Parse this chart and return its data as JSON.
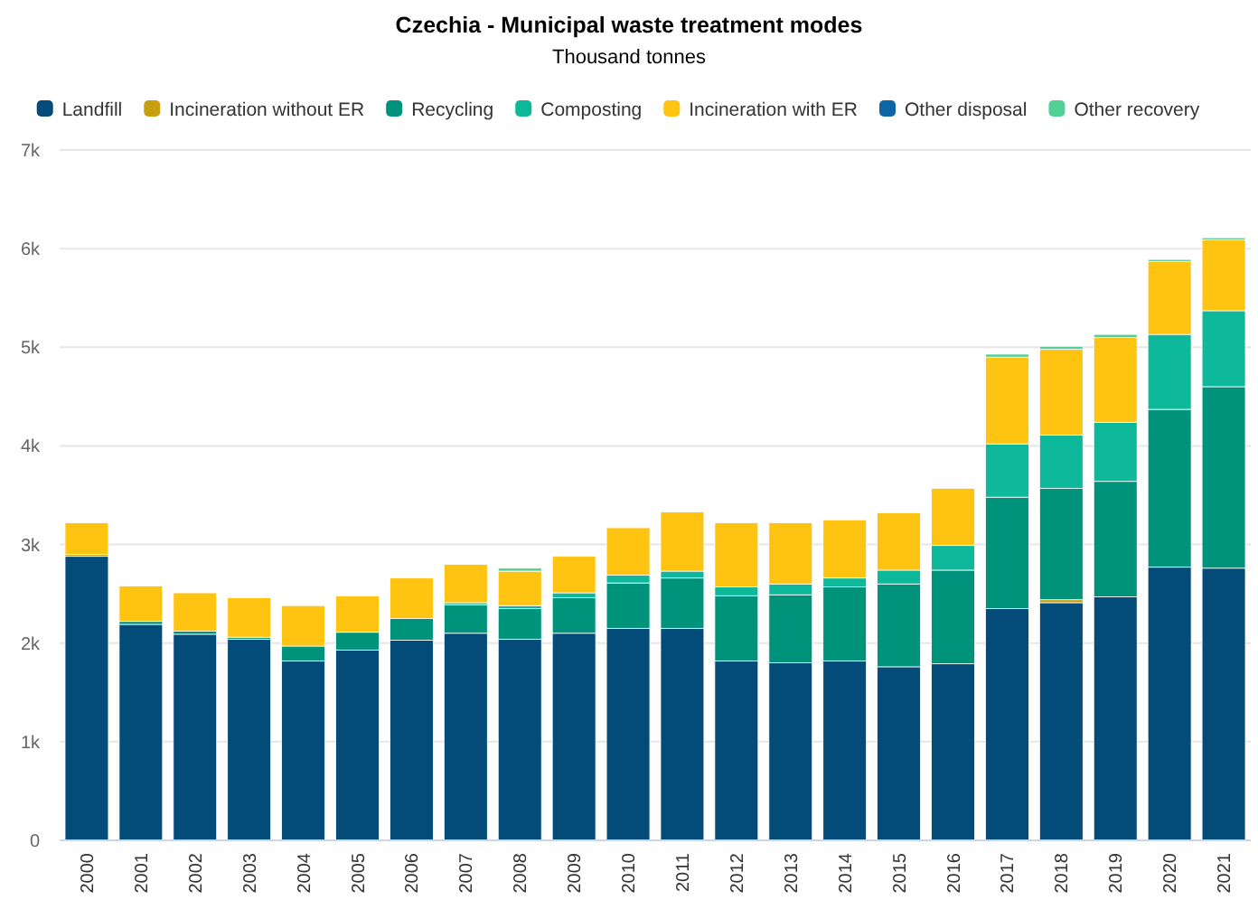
{
  "chart_data": {
    "type": "bar",
    "stacked": true,
    "title": "Czechia - Municipal waste treatment modes",
    "subtitle": "Thousand tonnes",
    "categories": [
      "2000",
      "2001",
      "2002",
      "2003",
      "2004",
      "2005",
      "2006",
      "2007",
      "2008",
      "2009",
      "2010",
      "2011",
      "2012",
      "2013",
      "2014",
      "2015",
      "2016",
      "2017",
      "2018",
      "2019",
      "2020",
      "2021"
    ],
    "series": [
      {
        "name": "Landfill",
        "color": "#034b78",
        "values": [
          2.88,
          2.19,
          2.09,
          2.04,
          1.82,
          1.93,
          2.03,
          2.1,
          2.04,
          2.1,
          2.15,
          2.15,
          1.82,
          1.8,
          1.82,
          1.76,
          1.79,
          2.35,
          2.41,
          2.47,
          2.77,
          2.76
        ]
      },
      {
        "name": "Incineration without ER",
        "color": "#c8a00f",
        "values": [
          0.02,
          null,
          null,
          null,
          null,
          null,
          null,
          null,
          null,
          null,
          null,
          null,
          null,
          null,
          null,
          null,
          null,
          null,
          0.03,
          null,
          null,
          null
        ]
      },
      {
        "name": "Recycling",
        "color": "#00937b",
        "values": [
          null,
          0.03,
          0.03,
          0.02,
          0.15,
          0.18,
          0.22,
          0.29,
          0.31,
          0.36,
          0.46,
          0.51,
          0.66,
          0.69,
          0.75,
          0.84,
          0.95,
          1.13,
          1.13,
          1.17,
          1.6,
          1.84
        ]
      },
      {
        "name": "Composting",
        "color": "#0db89b",
        "values": [
          null,
          null,
          null,
          null,
          null,
          null,
          null,
          0.02,
          0.03,
          0.05,
          0.08,
          0.07,
          0.09,
          0.11,
          0.09,
          0.14,
          0.25,
          0.54,
          0.54,
          0.6,
          0.76,
          0.77
        ]
      },
      {
        "name": "Incineration with ER",
        "color": "#ffc312",
        "values": [
          0.32,
          0.36,
          0.39,
          0.4,
          0.41,
          0.37,
          0.41,
          0.39,
          0.35,
          0.37,
          0.48,
          0.6,
          0.65,
          0.62,
          0.59,
          0.58,
          0.58,
          0.88,
          0.87,
          0.86,
          0.74,
          0.72
        ]
      },
      {
        "name": "Other disposal",
        "color": "#0b66a3",
        "values": [
          null,
          null,
          null,
          null,
          null,
          null,
          null,
          null,
          null,
          null,
          null,
          null,
          null,
          null,
          null,
          null,
          null,
          null,
          null,
          null,
          null,
          null
        ]
      },
      {
        "name": "Other recovery",
        "color": "#52cf95",
        "values": [
          null,
          null,
          null,
          null,
          null,
          null,
          null,
          null,
          0.03,
          null,
          null,
          null,
          null,
          null,
          null,
          null,
          null,
          0.03,
          0.03,
          0.03,
          0.02,
          0.02
        ]
      }
    ],
    "ylim": [
      0,
      7
    ],
    "yticks": [
      {
        "value": 0,
        "label": "0"
      },
      {
        "value": 1,
        "label": "1k"
      },
      {
        "value": 2,
        "label": "2k"
      },
      {
        "value": 3,
        "label": "3k"
      },
      {
        "value": 4,
        "label": "4k"
      },
      {
        "value": 5,
        "label": "5k"
      },
      {
        "value": 6,
        "label": "6k"
      },
      {
        "value": 7,
        "label": "7k"
      }
    ],
    "grid": "y",
    "legend": "top"
  }
}
